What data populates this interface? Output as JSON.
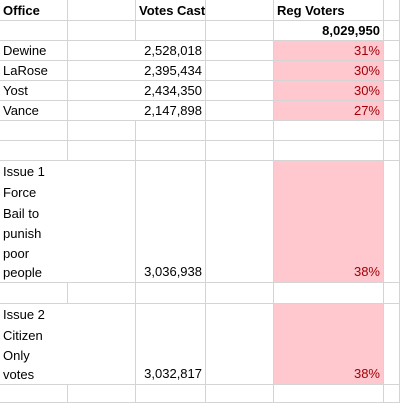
{
  "header": {
    "office": "Office",
    "votes_cast": "Votes Cast",
    "reg_voters": "Reg Voters"
  },
  "reg_voters_total": "8,029,950",
  "candidates": [
    {
      "name": "Dewine",
      "votes": "2,528,018",
      "pct": "31%"
    },
    {
      "name": "LaRose",
      "votes": "2,395,434",
      "pct": "30%"
    },
    {
      "name": "Yost",
      "votes": "2,434,350",
      "pct": "30%"
    },
    {
      "name": "Vance",
      "votes": "2,147,898",
      "pct": "27%"
    }
  ],
  "issue1": {
    "lines": [
      "Issue 1",
      "Force",
      "Bail to",
      "punish",
      "poor",
      "people"
    ],
    "votes": "3,036,938",
    "pct": "38%"
  },
  "issue2": {
    "lines": [
      "Issue 2",
      "Citizen",
      "Only",
      "votes"
    ],
    "votes": "3,032,817",
    "pct": "38%"
  },
  "highlight_color": "#ffc7ce",
  "highlight_text_color": "#9c0006"
}
